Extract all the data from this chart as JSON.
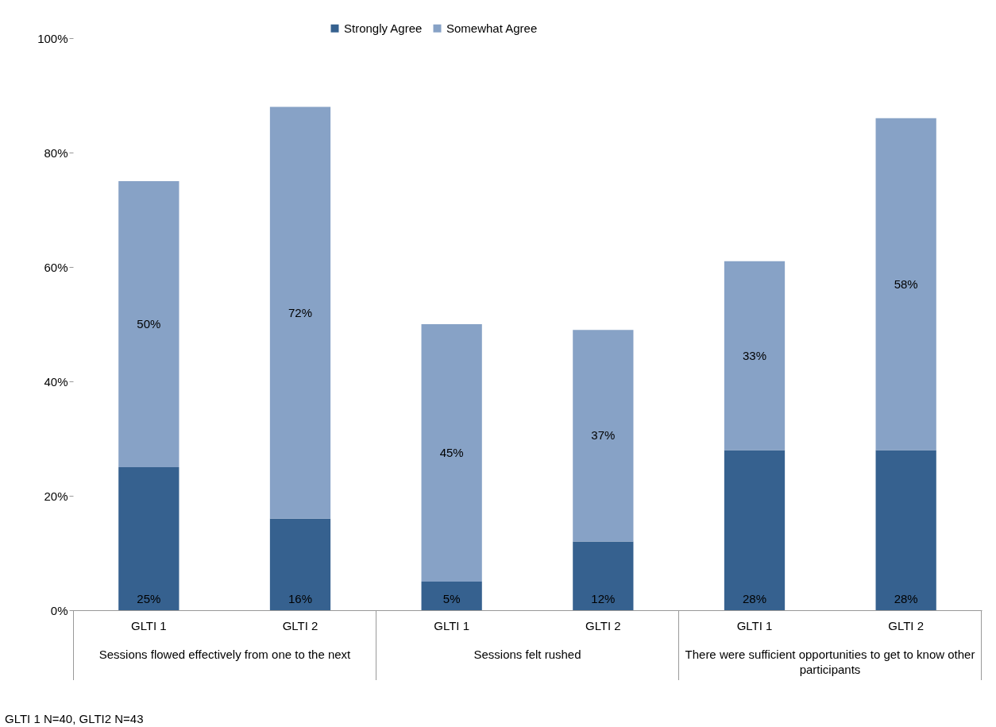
{
  "chart_data": {
    "type": "bar",
    "stacked": true,
    "categories": [
      "GLTI 1",
      "GLTI 2",
      "GLTI 1",
      "GLTI 2",
      "GLTI 1",
      "GLTI 2"
    ],
    "series": [
      {
        "name": "Strongly Agree",
        "color": "#36618f",
        "values": [
          25,
          16,
          5,
          12,
          28,
          28
        ],
        "value_labels": [
          "25%",
          "16%",
          "5%",
          "12%",
          "28%",
          "28%"
        ]
      },
      {
        "name": "Somewhat Agree",
        "color": "#87a2c6",
        "values": [
          50,
          72,
          45,
          37,
          33,
          58
        ],
        "value_labels": [
          "50%",
          "72%",
          "45%",
          "37%",
          "33%",
          "58%"
        ]
      }
    ],
    "ylim": [
      0,
      100
    ],
    "yticks": [
      {
        "value": 0,
        "label": "0%"
      },
      {
        "value": 20,
        "label": "20%"
      },
      {
        "value": 40,
        "label": "40%"
      },
      {
        "value": 60,
        "label": "60%"
      },
      {
        "value": 80,
        "label": "80%"
      },
      {
        "value": 100,
        "label": "100%"
      }
    ],
    "grid": false,
    "legend": "top",
    "annotations": [
      "Sessions flowed effectively from one to the next",
      "Sessions felt rushed",
      "There were sufficient opportunities to get to know other participants",
      "GLTI 1 N=40, GLTI2 N=43"
    ]
  }
}
